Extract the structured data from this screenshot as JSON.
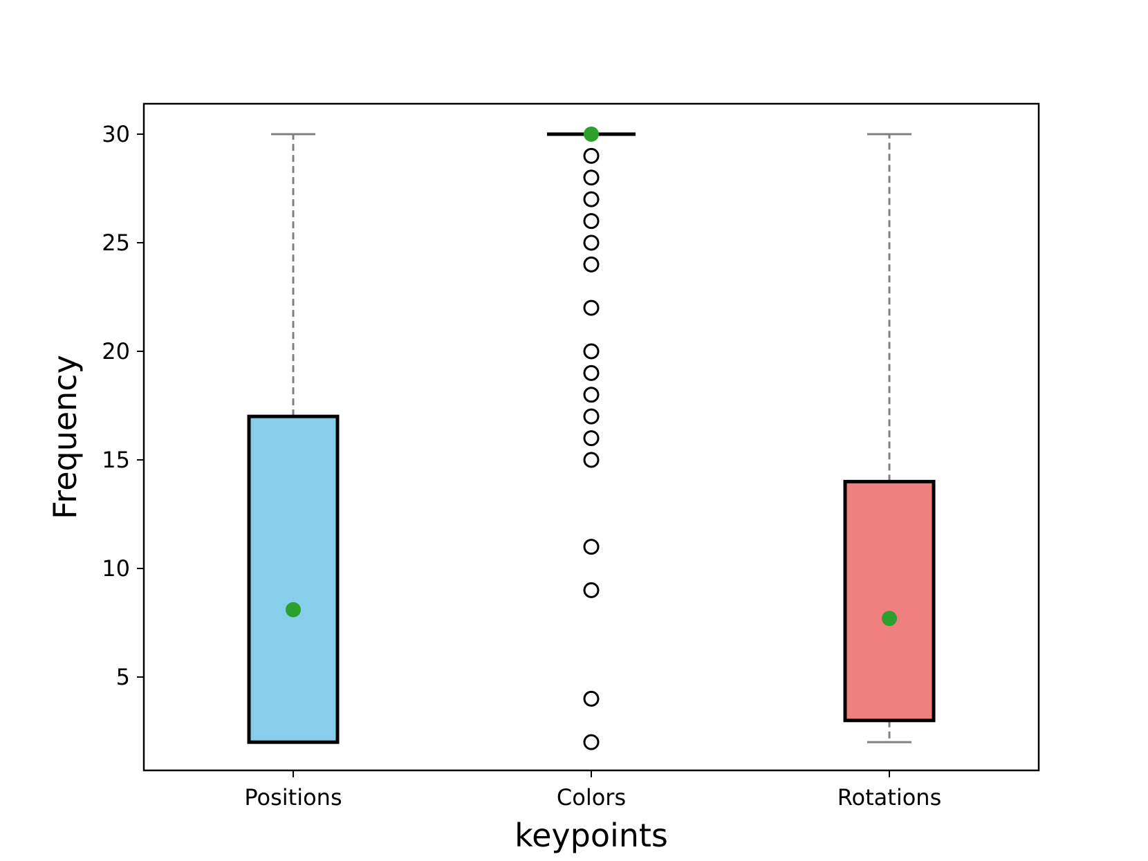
{
  "chart_data": {
    "type": "box",
    "xlabel": "keypoints",
    "ylabel": "Frequency",
    "categories": [
      "Positions",
      "Colors",
      "Rotations"
    ],
    "ylim": [
      0.7,
      31.4
    ],
    "yticks": [
      5,
      10,
      15,
      20,
      25,
      30
    ],
    "grid": false,
    "boxes": [
      {
        "category": "Positions",
        "whisker_low": 2,
        "q1": 2,
        "median": 2,
        "q3": 17,
        "whisker_high": 30,
        "mean": 8.1,
        "fill": "#87ceeb",
        "outliers": []
      },
      {
        "category": "Colors",
        "whisker_low": 30,
        "q1": 30,
        "median": 30,
        "q3": 30,
        "whisker_high": 30,
        "mean": 30,
        "fill": "#87ceeb",
        "outliers": [
          29,
          28,
          27,
          26,
          25,
          24,
          22,
          20,
          19,
          18,
          17,
          16,
          15,
          11,
          9,
          4,
          2
        ]
      },
      {
        "category": "Rotations",
        "whisker_low": 2,
        "q1": 3,
        "median": 3,
        "q3": 14,
        "whisker_high": 30,
        "mean": 7.7,
        "fill": "#f08080",
        "outliers": []
      }
    ],
    "colors": {
      "whisker": "#808080",
      "box_edge": "#000000",
      "mean_marker": "#2ca02c",
      "outlier_edge": "#000000"
    }
  }
}
